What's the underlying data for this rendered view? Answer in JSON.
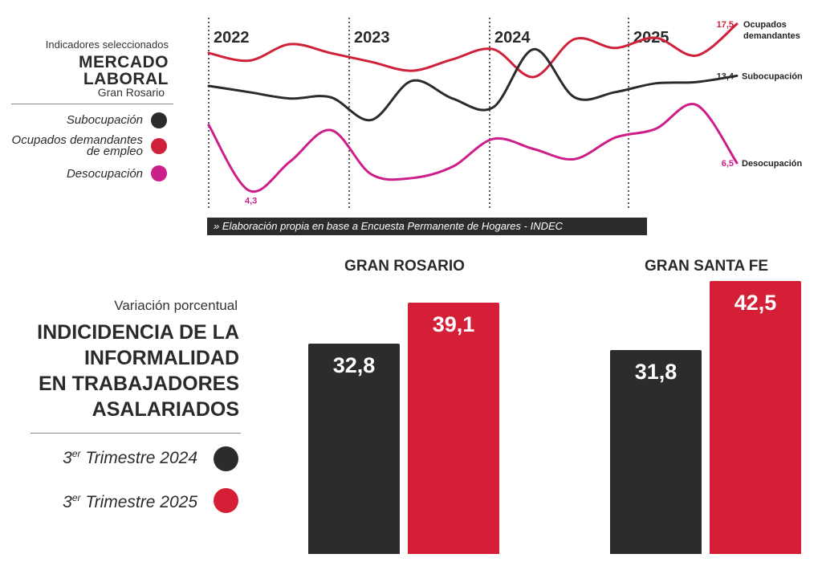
{
  "top": {
    "subtitle": "Indicadores seleccionados",
    "title_line1": "MERCADO",
    "title_line2": "LABORAL",
    "region": "Gran Rosario",
    "legend": [
      {
        "label": "Subocupación",
        "color": "#2b2b2d"
      },
      {
        "label_line1": "Ocupados demandantes",
        "label_line2": "de empleo",
        "color": "#d0213b"
      },
      {
        "label": "Desocupación",
        "color": "#cc1f8a"
      }
    ],
    "source": "» Elaboración propia en base a Encuesta Permanente de Hogares - INDEC"
  },
  "bottom": {
    "subtitle": "Variación porcentual",
    "title_lines": [
      "INDICIDENCIA DE LA",
      "INFORMALIDAD",
      "EN TRABAJADORES",
      "ASALARIADOS"
    ],
    "legend": [
      {
        "pre": "3",
        "sup": "er",
        "text": " Trimestre 2024",
        "color": "#2c2c2e"
      },
      {
        "pre": "3",
        "sup": "er",
        "text": " Trimestre 2025",
        "color": "#d41f37"
      }
    ]
  },
  "chart_data": [
    {
      "type": "line",
      "x_ticks": [
        "2022",
        "2023",
        "2024",
        "2025"
      ],
      "series": [
        {
          "name": "Ocupados demandantes",
          "color": "#d0213b",
          "values": [
            15.2,
            14.6,
            15.9,
            15.2,
            14.5,
            13.8,
            14.7,
            15.5,
            13.3,
            16.3,
            15.6,
            16.4,
            15.0,
            17.5
          ],
          "end_label": "17,5",
          "end_name_line1": "Ocupados",
          "end_name_line2": "demandantes"
        },
        {
          "name": "Subocupación",
          "color": "#2b2b2d",
          "values": [
            12.6,
            12.1,
            11.6,
            11.7,
            9.9,
            13.0,
            11.6,
            10.9,
            15.5,
            11.7,
            12.1,
            12.8,
            12.9,
            13.4
          ],
          "end_label": "13,4",
          "end_name": "Subocupación"
        },
        {
          "name": "Desocupación",
          "color": "#cc1f8a",
          "values": [
            9.5,
            4.3,
            6.6,
            9.1,
            5.6,
            5.3,
            6.2,
            8.4,
            7.6,
            6.8,
            8.5,
            9.2,
            11.1,
            6.5
          ],
          "end_label": "6,5",
          "end_name": "Desocupación",
          "point_labels": [
            {
              "index": 1,
              "text": "4,3"
            }
          ]
        }
      ]
    },
    {
      "type": "bar",
      "groups": [
        "GRAN ROSARIO",
        "GRAN SANTA FE"
      ],
      "series": [
        {
          "name": "3er Trimestre 2024",
          "color": "#2c2c2e",
          "values": [
            32.8,
            31.8
          ],
          "labels": [
            "32,8",
            "31,8"
          ]
        },
        {
          "name": "3er Trimestre 2025",
          "color": "#d41f37",
          "values": [
            39.1,
            42.5
          ],
          "labels": [
            "39,1",
            "42,5"
          ]
        }
      ]
    }
  ]
}
